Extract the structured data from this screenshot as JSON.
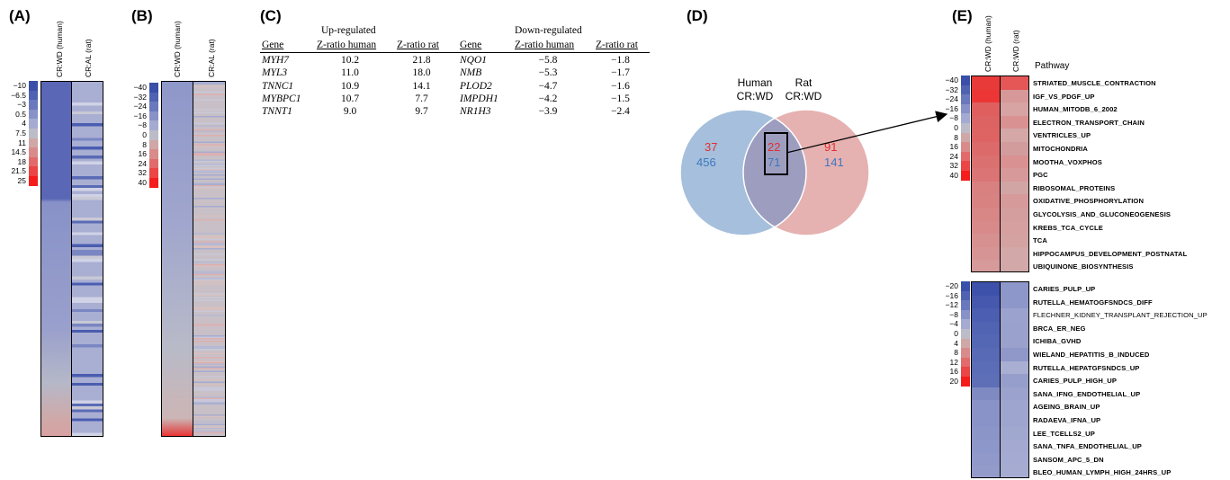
{
  "panels": {
    "A": {
      "label": "(A)",
      "columns": [
        "CR:WD (human)",
        "CR:AL (rat)"
      ],
      "legend": [
        {
          "label": "−10",
          "color": "#3a4fa8"
        },
        {
          "label": "−6.5",
          "color": "#4f63b2"
        },
        {
          "label": "−3",
          "color": "#6a79bd"
        },
        {
          "label": "0.5",
          "color": "#8892c8"
        },
        {
          "label": "4",
          "color": "#a4aad1"
        },
        {
          "label": "7.5",
          "color": "#bcbcc8"
        },
        {
          "label": "11",
          "color": "#cfa7a7"
        },
        {
          "label": "14.5",
          "color": "#d98b8b"
        },
        {
          "label": "18",
          "color": "#e26a6a"
        },
        {
          "label": "21.5",
          "color": "#eb4545"
        },
        {
          "label": "25",
          "color": "#f51c1c"
        }
      ]
    },
    "B": {
      "label": "(B)",
      "columns": [
        "CR:WD (human)",
        "CR:AL (rat)"
      ],
      "legend": [
        {
          "label": "−40",
          "color": "#3a4fa8"
        },
        {
          "label": "−32",
          "color": "#4f63b2"
        },
        {
          "label": "−24",
          "color": "#6a79bd"
        },
        {
          "label": "−16",
          "color": "#8892c8"
        },
        {
          "label": "−8",
          "color": "#a4aad1"
        },
        {
          "label": "0",
          "color": "#bcbcc8"
        },
        {
          "label": "8",
          "color": "#cfa7a7"
        },
        {
          "label": "16",
          "color": "#d98b8b"
        },
        {
          "label": "24",
          "color": "#e26a6a"
        },
        {
          "label": "32",
          "color": "#eb4545"
        },
        {
          "label": "40",
          "color": "#f51c1c"
        }
      ]
    },
    "C": {
      "label": "(C)",
      "up_header": "Up-regulated",
      "down_header": "Down-regulated",
      "col_gene": "Gene",
      "col_human": "Z-ratio human",
      "col_rat": "Z-ratio rat",
      "up_rows": [
        {
          "gene": "MYH7",
          "human": "10.2",
          "rat": "21.8"
        },
        {
          "gene": "MYL3",
          "human": "11.0",
          "rat": "18.0"
        },
        {
          "gene": "TNNC1",
          "human": "10.9",
          "rat": "14.1"
        },
        {
          "gene": "MYBPC1",
          "human": "10.7",
          "rat": "7.7"
        },
        {
          "gene": "TNNT1",
          "human": "9.0",
          "rat": "9.7"
        }
      ],
      "down_rows": [
        {
          "gene": "NQO1",
          "human": "−5.8",
          "rat": "−1.8"
        },
        {
          "gene": "NMB",
          "human": "−5.3",
          "rat": "−1.7"
        },
        {
          "gene": "PLOD2",
          "human": "−4.7",
          "rat": "−1.6"
        },
        {
          "gene": "IMPDH1",
          "human": "−4.2",
          "rat": "−1.5"
        },
        {
          "gene": "NR1H3",
          "human": "−3.9",
          "rat": "−2.4"
        }
      ]
    },
    "D": {
      "label": "(D)",
      "left_title_1": "Human",
      "left_title_2": "CR:WD",
      "right_title_1": "Rat",
      "right_title_2": "CR:WD",
      "left_up": "37",
      "left_down": "456",
      "overlap_up": "22",
      "overlap_down": "71",
      "right_up": "91",
      "right_down": "141",
      "colors": {
        "left": "#a6bfdc",
        "right": "#e6b1b1",
        "overlap": "#9d9ebf",
        "up": "#e03030",
        "down": "#3b78c0"
      }
    },
    "E": {
      "label": "(E)",
      "columns": [
        "CR:WD (human)",
        "CR:WD (rat)"
      ],
      "pathway_header": "Pathway",
      "legend_top": [
        {
          "label": "−40",
          "color": "#3a4fa8"
        },
        {
          "label": "−32",
          "color": "#4f63b2"
        },
        {
          "label": "−24",
          "color": "#6a79bd"
        },
        {
          "label": "−16",
          "color": "#8892c8"
        },
        {
          "label": "−8",
          "color": "#a4aad1"
        },
        {
          "label": "0",
          "color": "#bcbcc8"
        },
        {
          "label": "8",
          "color": "#cfa7a7"
        },
        {
          "label": "16",
          "color": "#d98b8b"
        },
        {
          "label": "24",
          "color": "#e26a6a"
        },
        {
          "label": "32",
          "color": "#eb4545"
        },
        {
          "label": "40",
          "color": "#f51c1c"
        }
      ],
      "legend_bottom": [
        {
          "label": "−20",
          "color": "#3a4fa8"
        },
        {
          "label": "−16",
          "color": "#4f63b2"
        },
        {
          "label": "−12",
          "color": "#6a79bd"
        },
        {
          "label": "−8",
          "color": "#8892c8"
        },
        {
          "label": "−4",
          "color": "#a4aad1"
        },
        {
          "label": "0",
          "color": "#bcbcc8"
        },
        {
          "label": "4",
          "color": "#cfa7a7"
        },
        {
          "label": "8",
          "color": "#d98b8b"
        },
        {
          "label": "12",
          "color": "#e26a6a"
        },
        {
          "label": "16",
          "color": "#eb4545"
        },
        {
          "label": "20",
          "color": "#f51c1c"
        }
      ],
      "up_pathways": [
        {
          "name": "STRIATED_MUSCLE_CONTRACTION",
          "human": "#e93a3a",
          "rat": "#e55757"
        },
        {
          "name": "IGF_VS_PDGF_UP",
          "human": "#ec3636",
          "rat": "#d69898"
        },
        {
          "name": "HUMAN_MITODB_6_2002",
          "human": "#df5f5f",
          "rat": "#d8a3a3"
        },
        {
          "name": "ELECTRON_TRANSPORT_CHAIN",
          "human": "#dd6262",
          "rat": "#d99191"
        },
        {
          "name": "VENTRICLES_UP",
          "human": "#de6464",
          "rat": "#d5a7a7"
        },
        {
          "name": "MITOCHONDRIA",
          "human": "#dd6a6a",
          "rat": "#d39c9c"
        },
        {
          "name": "MOOTHA_VOXPHOS",
          "human": "#db7070",
          "rat": "#d99191"
        },
        {
          "name": "PGC",
          "human": "#db7474",
          "rat": "#d79999"
        },
        {
          "name": "RIBOSOMAL_PROTEINS",
          "human": "#d98080",
          "rat": "#d2a5a5"
        },
        {
          "name": "OXIDATIVE_PHOSPHORYLATION",
          "human": "#d98282",
          "rat": "#d79a9a"
        },
        {
          "name": "GLYCOLYSIS_AND_GLUCONEOGENESIS",
          "human": "#d88686",
          "rat": "#d59e9e"
        },
        {
          "name": "KREBS_TCA_CYCLE",
          "human": "#d88a8a",
          "rat": "#d6a0a0"
        },
        {
          "name": "TCA",
          "human": "#d79090",
          "rat": "#d5a2a2"
        },
        {
          "name": "HIPPOCAMPUS_DEVELOPMENT_POSTNATAL",
          "human": "#d69494",
          "rat": "#d3a8a8"
        },
        {
          "name": "UBIQUINONE_BIOSYNTHESIS",
          "human": "#d69a9a",
          "rat": "#d3a8a8"
        }
      ],
      "down_pathways": [
        {
          "name": "CARIES_PULP_UP",
          "human": "#3d51ab",
          "rat": "#8e97c9",
          "light": false
        },
        {
          "name": "RUTELLA_HEMATOGFSNDCS_DIFF",
          "human": "#4558ae",
          "rat": "#8e97c9",
          "light": false
        },
        {
          "name": "FLECHNER_KIDNEY_TRANSPLANT_REJECTION_UP",
          "human": "#4b5eb1",
          "rat": "#9ba2cd",
          "light": true
        },
        {
          "name": "BRCA_ER_NEG",
          "human": "#5064b3",
          "rat": "#9aa1cc",
          "light": false
        },
        {
          "name": "ICHIBA_GVHD",
          "human": "#5467b5",
          "rat": "#9aa1cc",
          "light": false
        },
        {
          "name": "WIELAND_HEPATITIS_B_INDUCED",
          "human": "#586ab6",
          "rat": "#8f98c9",
          "light": false
        },
        {
          "name": "RUTELLA_HEPATGFSNDCS_UP",
          "human": "#5b6db7",
          "rat": "#a9aed3",
          "light": false
        },
        {
          "name": "CARIES_PULP_HIGH_UP",
          "human": "#5e6fb8",
          "rat": "#969ecb",
          "light": false
        },
        {
          "name": "SANA_IFNG_ENDOTHELIAL_UP",
          "human": "#7f8ac3",
          "rat": "#9ba2cd",
          "light": false
        },
        {
          "name": "AGEING_BRAIN_UP",
          "human": "#8a93c7",
          "rat": "#9ea5ce",
          "light": false
        },
        {
          "name": "RADAEVA_IFNA_UP",
          "human": "#8a93c7",
          "rat": "#9ea5ce",
          "light": false
        },
        {
          "name": "LEE_TCELLS2_UP",
          "human": "#8c95c8",
          "rat": "#a1a8cf",
          "light": false
        },
        {
          "name": "SANA_TNFA_ENDOTHELIAL_UP",
          "human": "#8e97c9",
          "rat": "#a3a9d0",
          "light": false
        },
        {
          "name": "SANSOM_APC_5_DN",
          "human": "#9099ca",
          "rat": "#a4aad1",
          "light": false
        },
        {
          "name": "BLEO_HUMAN_LYMPH_HIGH_24HRS_UP",
          "human": "#939bcb",
          "rat": "#a6acd1",
          "light": false
        }
      ]
    }
  }
}
